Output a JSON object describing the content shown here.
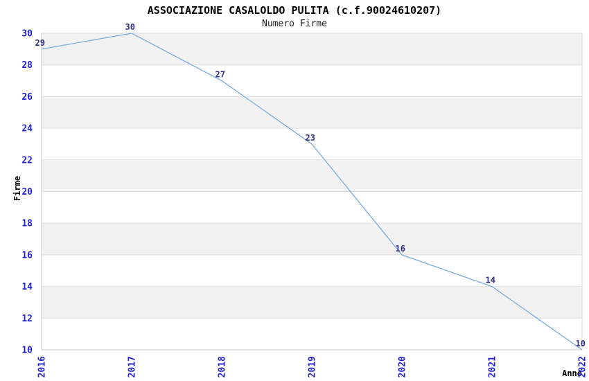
{
  "chart_data": {
    "type": "line",
    "title": "ASSOCIAZIONE CASALOLDO PULITA (c.f.90024610207)",
    "subtitle": "Numero Firme",
    "xlabel": "Anno",
    "ylabel": "Firme",
    "categories": [
      "2016",
      "2017",
      "2018",
      "2019",
      "2020",
      "2021",
      "2022"
    ],
    "series": [
      {
        "name": "Numero Firme",
        "values": [
          29,
          30,
          27,
          23,
          16,
          14,
          10
        ]
      }
    ],
    "ylim": [
      10,
      30
    ],
    "ytick_step": 2,
    "grid": "horizontal-bands-alternating",
    "legend": "none",
    "markers": "none",
    "data_labels_visible": true,
    "colors": {
      "line": "#7aabdd",
      "band": "#f2f2f2",
      "gridline": "#dedede",
      "axis": "#c9c9c9",
      "tick_label": "#2424cc",
      "data_label": "#323289",
      "text": "#000000",
      "background": "#ffffff"
    }
  }
}
